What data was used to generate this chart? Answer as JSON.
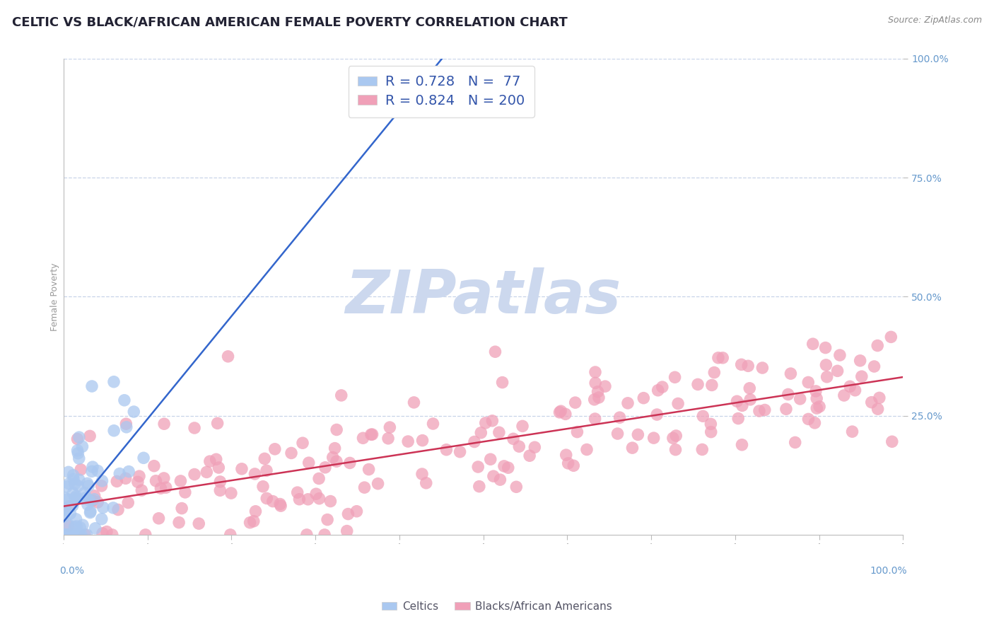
{
  "title": "CELTIC VS BLACK/AFRICAN AMERICAN FEMALE POVERTY CORRELATION CHART",
  "source": "Source: ZipAtlas.com",
  "ylabel": "Female Poverty",
  "ytick_labels": [
    "100.0%",
    "75.0%",
    "50.0%",
    "25.0%"
  ],
  "ytick_positions": [
    100,
    75,
    50,
    25
  ],
  "celtics_R": 0.728,
  "celtics_N": 77,
  "blacks_R": 0.824,
  "blacks_N": 200,
  "celtics_color": "#aac8f0",
  "celtics_line_color": "#3366cc",
  "blacks_color": "#f0a0b8",
  "blacks_line_color": "#cc3355",
  "watermark_color": "#ccd8ee",
  "legend_label_celtics": "Celtics",
  "legend_label_blacks": "Blacks/African Americans",
  "title_fontsize": 13,
  "axis_label_fontsize": 9,
  "tick_label_fontsize": 10,
  "source_fontsize": 9,
  "legend_fontsize": 14,
  "background_color": "#ffffff",
  "grid_color": "#c8d4e8",
  "celtics_line_intercept": 0.0,
  "celtics_line_slope": 2.8,
  "blacks_line_intercept": 5.0,
  "blacks_line_slope": 0.28
}
